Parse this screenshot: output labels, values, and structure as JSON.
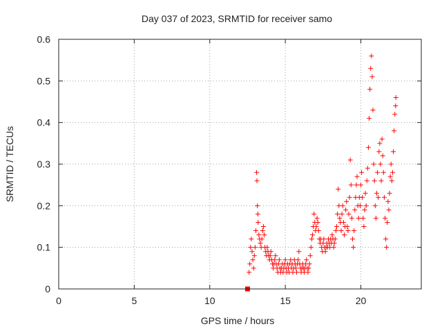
{
  "chart_data": {
    "type": "scatter",
    "title": "Day 037 of 2023, SRMTID for receiver samo",
    "xlabel": "GPS time / hours",
    "ylabel": "SRMTID / TECUs",
    "xlim": [
      0,
      24.0
    ],
    "ylim": [
      0,
      0.6
    ],
    "xticks": [
      0,
      5,
      10,
      15,
      20
    ],
    "xtick_labels": [
      "0",
      "5",
      "10",
      "15",
      "20"
    ],
    "yticks": [
      0,
      0.1,
      0.2,
      0.3,
      0.4,
      0.5,
      0.6
    ],
    "ytick_labels": [
      "0",
      "0.1",
      "0.2",
      "0.3",
      "0.4",
      "0.5",
      "0.6"
    ],
    "grid": true,
    "marker": "plus",
    "color": "#ff0000",
    "square_marker": {
      "x": 12.5,
      "y": 0.0
    },
    "series": [
      {
        "name": "SRMTID",
        "points": [
          [
            12.6,
            0.04
          ],
          [
            12.65,
            0.06
          ],
          [
            12.7,
            0.1
          ],
          [
            12.75,
            0.12
          ],
          [
            12.8,
            0.09
          ],
          [
            12.85,
            0.07
          ],
          [
            12.9,
            0.05
          ],
          [
            12.95,
            0.08
          ],
          [
            13.0,
            0.1
          ],
          [
            13.05,
            0.14
          ],
          [
            13.1,
            0.28
          ],
          [
            13.12,
            0.26
          ],
          [
            13.15,
            0.2
          ],
          [
            13.18,
            0.18
          ],
          [
            13.2,
            0.16
          ],
          [
            13.25,
            0.13
          ],
          [
            13.3,
            0.12
          ],
          [
            13.35,
            0.11
          ],
          [
            13.4,
            0.1
          ],
          [
            13.45,
            0.12
          ],
          [
            13.5,
            0.14
          ],
          [
            13.55,
            0.15
          ],
          [
            13.6,
            0.13
          ],
          [
            13.65,
            0.1
          ],
          [
            13.7,
            0.09
          ],
          [
            13.75,
            0.08
          ],
          [
            13.8,
            0.1
          ],
          [
            13.85,
            0.09
          ],
          [
            13.9,
            0.08
          ],
          [
            13.95,
            0.07
          ],
          [
            14.0,
            0.08
          ],
          [
            14.05,
            0.09
          ],
          [
            14.1,
            0.07
          ],
          [
            14.15,
            0.06
          ],
          [
            14.2,
            0.05
          ],
          [
            14.25,
            0.06
          ],
          [
            14.3,
            0.07
          ],
          [
            14.35,
            0.08
          ],
          [
            14.4,
            0.06
          ],
          [
            14.45,
            0.05
          ],
          [
            14.5,
            0.04
          ],
          [
            14.55,
            0.06
          ],
          [
            14.6,
            0.07
          ],
          [
            14.65,
            0.05
          ],
          [
            14.7,
            0.04
          ],
          [
            14.75,
            0.05
          ],
          [
            14.8,
            0.06
          ],
          [
            14.85,
            0.04
          ],
          [
            14.9,
            0.05
          ],
          [
            14.95,
            0.06
          ],
          [
            15.0,
            0.07
          ],
          [
            15.05,
            0.05
          ],
          [
            15.1,
            0.04
          ],
          [
            15.15,
            0.06
          ],
          [
            15.2,
            0.05
          ],
          [
            15.25,
            0.04
          ],
          [
            15.3,
            0.06
          ],
          [
            15.35,
            0.07
          ],
          [
            15.4,
            0.05
          ],
          [
            15.45,
            0.06
          ],
          [
            15.5,
            0.04
          ],
          [
            15.55,
            0.05
          ],
          [
            15.6,
            0.07
          ],
          [
            15.65,
            0.06
          ],
          [
            15.7,
            0.05
          ],
          [
            15.75,
            0.04
          ],
          [
            15.8,
            0.06
          ],
          [
            15.85,
            0.07
          ],
          [
            15.9,
            0.09
          ],
          [
            15.95,
            0.06
          ],
          [
            16.0,
            0.05
          ],
          [
            16.05,
            0.04
          ],
          [
            16.1,
            0.05
          ],
          [
            16.15,
            0.06
          ],
          [
            16.2,
            0.05
          ],
          [
            16.25,
            0.04
          ],
          [
            16.3,
            0.05
          ],
          [
            16.35,
            0.06
          ],
          [
            16.4,
            0.07
          ],
          [
            16.45,
            0.05
          ],
          [
            16.5,
            0.04
          ],
          [
            16.55,
            0.05
          ],
          [
            16.6,
            0.06
          ],
          [
            16.65,
            0.08
          ],
          [
            16.7,
            0.1
          ],
          [
            16.75,
            0.12
          ],
          [
            16.8,
            0.13
          ],
          [
            16.85,
            0.15
          ],
          [
            16.9,
            0.18
          ],
          [
            16.95,
            0.16
          ],
          [
            17.0,
            0.14
          ],
          [
            17.05,
            0.15
          ],
          [
            17.1,
            0.17
          ],
          [
            17.15,
            0.16
          ],
          [
            17.2,
            0.14
          ],
          [
            17.25,
            0.12
          ],
          [
            17.3,
            0.11
          ],
          [
            17.35,
            0.12
          ],
          [
            17.4,
            0.1
          ],
          [
            17.45,
            0.09
          ],
          [
            17.5,
            0.11
          ],
          [
            17.55,
            0.12
          ],
          [
            17.6,
            0.1
          ],
          [
            17.65,
            0.09
          ],
          [
            17.7,
            0.1
          ],
          [
            17.75,
            0.11
          ],
          [
            17.8,
            0.1
          ],
          [
            17.85,
            0.12
          ],
          [
            17.9,
            0.11
          ],
          [
            17.95,
            0.1
          ],
          [
            18.0,
            0.12
          ],
          [
            18.05,
            0.11
          ],
          [
            18.1,
            0.13
          ],
          [
            18.15,
            0.12
          ],
          [
            18.2,
            0.1
          ],
          [
            18.25,
            0.11
          ],
          [
            18.3,
            0.12
          ],
          [
            18.35,
            0.14
          ],
          [
            18.4,
            0.15
          ],
          [
            18.45,
            0.18
          ],
          [
            18.5,
            0.24
          ],
          [
            18.55,
            0.2
          ],
          [
            18.6,
            0.17
          ],
          [
            18.65,
            0.16
          ],
          [
            18.7,
            0.14
          ],
          [
            18.75,
            0.18
          ],
          [
            18.8,
            0.2
          ],
          [
            18.85,
            0.16
          ],
          [
            18.9,
            0.13
          ],
          [
            18.95,
            0.15
          ],
          [
            19.0,
            0.19
          ],
          [
            19.05,
            0.21
          ],
          [
            19.1,
            0.15
          ],
          [
            19.15,
            0.14
          ],
          [
            19.2,
            0.18
          ],
          [
            19.25,
            0.22
          ],
          [
            19.3,
            0.31
          ],
          [
            19.35,
            0.25
          ],
          [
            19.4,
            0.17
          ],
          [
            19.45,
            0.12
          ],
          [
            19.5,
            0.1
          ],
          [
            19.55,
            0.14
          ],
          [
            19.6,
            0.19
          ],
          [
            19.65,
            0.22
          ],
          [
            19.7,
            0.25
          ],
          [
            19.75,
            0.27
          ],
          [
            19.8,
            0.2
          ],
          [
            19.85,
            0.17
          ],
          [
            19.9,
            0.22
          ],
          [
            19.95,
            0.2
          ],
          [
            20.0,
            0.25
          ],
          [
            20.05,
            0.28
          ],
          [
            20.1,
            0.22
          ],
          [
            20.15,
            0.17
          ],
          [
            20.2,
            0.15
          ],
          [
            20.25,
            0.19
          ],
          [
            20.3,
            0.23
          ],
          [
            20.35,
            0.2
          ],
          [
            20.4,
            0.26
          ],
          [
            20.45,
            0.29
          ],
          [
            20.5,
            0.34
          ],
          [
            20.55,
            0.41
          ],
          [
            20.6,
            0.48
          ],
          [
            20.65,
            0.53
          ],
          [
            20.7,
            0.56
          ],
          [
            20.75,
            0.51
          ],
          [
            20.8,
            0.43
          ],
          [
            20.85,
            0.3
          ],
          [
            20.9,
            0.26
          ],
          [
            20.95,
            0.2
          ],
          [
            21.0,
            0.17
          ],
          [
            21.05,
            0.23
          ],
          [
            21.1,
            0.28
          ],
          [
            21.15,
            0.22
          ],
          [
            21.2,
            0.33
          ],
          [
            21.25,
            0.35
          ],
          [
            21.3,
            0.3
          ],
          [
            21.35,
            0.26
          ],
          [
            21.4,
            0.36
          ],
          [
            21.45,
            0.32
          ],
          [
            21.5,
            0.28
          ],
          [
            21.55,
            0.22
          ],
          [
            21.6,
            0.17
          ],
          [
            21.65,
            0.12
          ],
          [
            21.7,
            0.1
          ],
          [
            21.75,
            0.16
          ],
          [
            21.8,
            0.21
          ],
          [
            21.85,
            0.19
          ],
          [
            21.9,
            0.23
          ],
          [
            21.95,
            0.27
          ],
          [
            22.0,
            0.3
          ],
          [
            22.05,
            0.26
          ],
          [
            22.1,
            0.28
          ],
          [
            22.15,
            0.33
          ],
          [
            22.2,
            0.38
          ],
          [
            22.25,
            0.42
          ],
          [
            22.3,
            0.44
          ],
          [
            22.32,
            0.46
          ]
        ]
      }
    ]
  }
}
